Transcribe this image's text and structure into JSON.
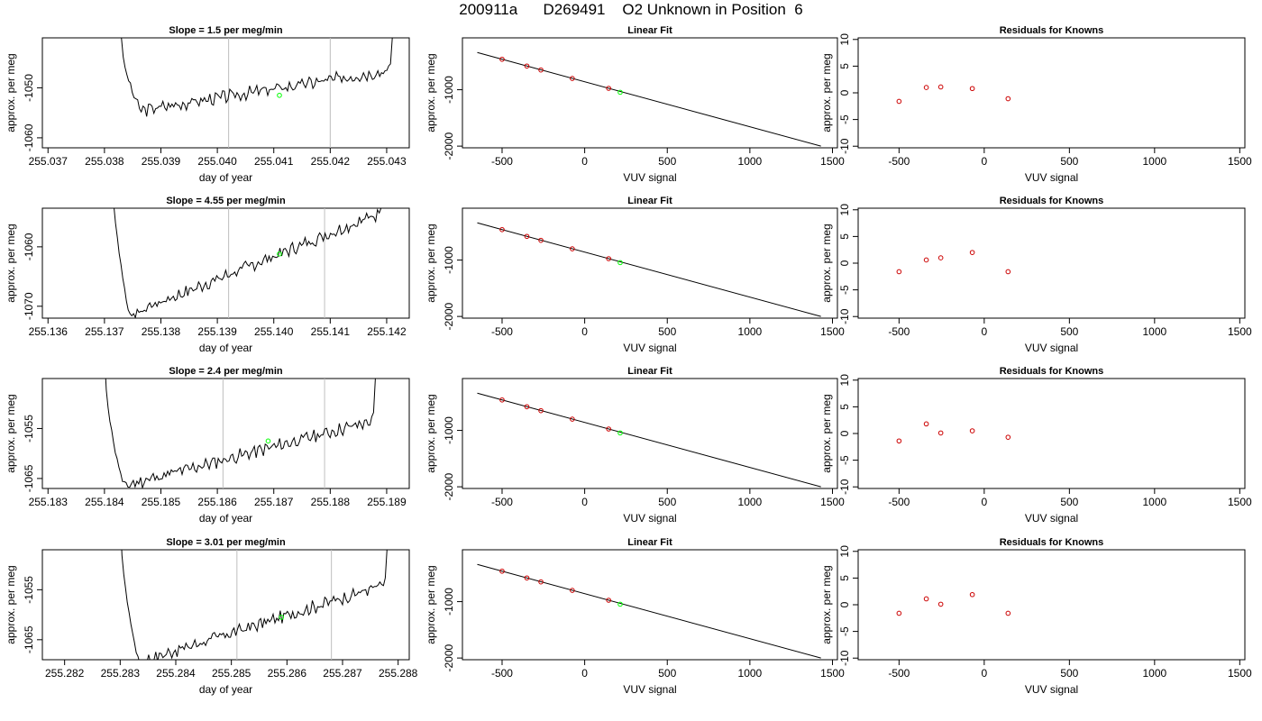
{
  "page": {
    "title": "200911a      D269491    O2 Unknown in Position  6"
  },
  "colors": {
    "trace": "#000000",
    "marker_current": "#00ff00",
    "marker_known": "#cc0000",
    "vline": "#bebebe",
    "axis": "#000000"
  },
  "chart_data": [
    {
      "type": "line",
      "row": 1,
      "panel": "timeseries",
      "title": "Slope =  1.5  per meg/min",
      "xlabel": "day of year",
      "ylabel": "approx. per meg",
      "xlim": [
        255.0369,
        255.0434
      ],
      "ylim": [
        -1062.0,
        -1040.0
      ],
      "xticks": [
        "255.037",
        "255.038",
        "255.039",
        "255.040",
        "255.041",
        "255.042",
        "255.043"
      ],
      "xtick_values": [
        255.037,
        255.038,
        255.039,
        255.04,
        255.041,
        255.042,
        255.043
      ],
      "yticks": [
        "-1060",
        "-1050"
      ],
      "ytick_values": [
        -1060,
        -1050
      ],
      "vlines": [
        255.0402,
        255.042
      ],
      "trace": {
        "x0": 255.0383,
        "x1": 255.0431,
        "y0": -1040,
        "y1": -1040,
        "base_start": -1054.5,
        "base_end": -1046.5,
        "seed": 3
      },
      "highlight": {
        "x": 255.0411,
        "y": -1051.5
      }
    },
    {
      "type": "line",
      "row": 1,
      "panel": "fit",
      "title": "Linear Fit",
      "xlabel": "VUV signal",
      "ylabel": "approx. per meg",
      "xlim": [
        -740,
        1530
      ],
      "ylim": [
        -2030,
        -80
      ],
      "xticks": [
        "-500",
        "0",
        "500",
        "1000",
        "1500"
      ],
      "xtick_values": [
        -500,
        0,
        500,
        1000,
        1500
      ],
      "yticks": [
        "-1000",
        "-2000"
      ],
      "ytick_values": [
        -1000,
        -2000
      ],
      "line": {
        "x": [
          -650,
          1430
        ],
        "y": [
          -340,
          -2000
        ]
      },
      "points": {
        "x": [
          -500,
          -350,
          -265,
          -75,
          145
        ],
        "y": [
          -460,
          -580,
          -650,
          -800,
          -975
        ]
      },
      "highlight": {
        "x": 215,
        "y": -1045
      }
    },
    {
      "type": "scatter",
      "row": 1,
      "panel": "residuals",
      "title": "Residuals for Knowns",
      "xlabel": "VUV signal",
      "ylabel": "approx. per meg",
      "xlim": [
        -740,
        1530
      ],
      "ylim": [
        -10.3,
        10.3
      ],
      "xticks": [
        "-500",
        "0",
        "500",
        "1000",
        "1500"
      ],
      "xtick_values": [
        -500,
        0,
        500,
        1000,
        1500
      ],
      "yticks": [
        "-10",
        "-5",
        "0",
        "5",
        "10"
      ],
      "ytick_values": [
        -10,
        -5,
        0,
        5,
        10
      ],
      "x": [
        -500,
        -340,
        -255,
        -70,
        140
      ],
      "y": [
        -1.6,
        1.0,
        1.1,
        0.8,
        -1.1
      ]
    },
    {
      "type": "line",
      "row": 2,
      "panel": "timeseries",
      "title": "Slope =  4.55  per meg/min",
      "xlabel": "day of year",
      "ylabel": "approx. per meg",
      "xlim": [
        255.1359,
        255.1424
      ],
      "ylim": [
        -1072.0,
        -1053.5
      ],
      "xticks": [
        "255.136",
        "255.137",
        "255.138",
        "255.139",
        "255.140",
        "255.141",
        "255.142"
      ],
      "xtick_values": [
        255.136,
        255.137,
        255.138,
        255.139,
        255.14,
        255.141,
        255.142
      ],
      "yticks": [
        "-1070",
        "-1060"
      ],
      "ytick_values": [
        -1070,
        -1060
      ],
      "vlines": [
        255.1392,
        255.1409
      ],
      "trace": {
        "x0": 255.1371,
        "x1": 255.1419,
        "y0": -1040,
        "y1": -1053.5,
        "base_start": -1071.5,
        "base_end": -1054.5,
        "seed": 7
      },
      "highlight": {
        "x": 255.1401,
        "y": -1061.2
      }
    },
    {
      "type": "line",
      "row": 2,
      "panel": "fit",
      "title": "Linear Fit",
      "xlabel": "VUV signal",
      "ylabel": "approx. per meg",
      "xlim": [
        -740,
        1530
      ],
      "ylim": [
        -2030,
        -80
      ],
      "xticks": [
        "-500",
        "0",
        "500",
        "1000",
        "1500"
      ],
      "xtick_values": [
        -500,
        0,
        500,
        1000,
        1500
      ],
      "yticks": [
        "-1000",
        "-2000"
      ],
      "ytick_values": [
        -1000,
        -2000
      ],
      "line": {
        "x": [
          -650,
          1430
        ],
        "y": [
          -340,
          -2000
        ]
      },
      "points": {
        "x": [
          -500,
          -350,
          -265,
          -75,
          145
        ],
        "y": [
          -460,
          -580,
          -650,
          -800,
          -975
        ]
      },
      "highlight": {
        "x": 215,
        "y": -1045
      }
    },
    {
      "type": "scatter",
      "row": 2,
      "panel": "residuals",
      "title": "Residuals for Knowns",
      "xlabel": "VUV signal",
      "ylabel": "approx. per meg",
      "xlim": [
        -740,
        1530
      ],
      "ylim": [
        -10.3,
        10.3
      ],
      "xticks": [
        "-500",
        "0",
        "500",
        "1000",
        "1500"
      ],
      "xtick_values": [
        -500,
        0,
        500,
        1000,
        1500
      ],
      "yticks": [
        "-10",
        "-5",
        "0",
        "5",
        "10"
      ],
      "ytick_values": [
        -10,
        -5,
        0,
        5,
        10
      ],
      "x": [
        -500,
        -340,
        -255,
        -70,
        140
      ],
      "y": [
        -1.6,
        0.6,
        1.0,
        2.0,
        -1.6
      ]
    },
    {
      "type": "line",
      "row": 3,
      "panel": "timeseries",
      "title": "Slope =  2.4  per meg/min",
      "xlabel": "day of year",
      "ylabel": "approx. per meg",
      "xlim": [
        255.1829,
        255.1894
      ],
      "ylim": [
        -1067.0,
        -1045.0
      ],
      "xticks": [
        "255.183",
        "255.184",
        "255.185",
        "255.186",
        "255.187",
        "255.188",
        "255.189"
      ],
      "xtick_values": [
        255.183,
        255.184,
        255.185,
        255.186,
        255.187,
        255.188,
        255.189
      ],
      "yticks": [
        "-1065",
        "-1055"
      ],
      "ytick_values": [
        -1065,
        -1055
      ],
      "vlines": [
        255.1861,
        255.1879
      ],
      "trace": {
        "x0": 255.184,
        "x1": 255.1888,
        "y0": -1040,
        "y1": -1045,
        "base_start": -1066.5,
        "base_end": -1053.5,
        "seed": 11
      },
      "highlight": {
        "x": 255.1869,
        "y": -1057.5
      }
    },
    {
      "type": "line",
      "row": 3,
      "panel": "fit",
      "title": "Linear Fit",
      "xlabel": "VUV signal",
      "ylabel": "approx. per meg",
      "xlim": [
        -740,
        1530
      ],
      "ylim": [
        -2030,
        -80
      ],
      "xticks": [
        "-500",
        "0",
        "500",
        "1000",
        "1500"
      ],
      "xtick_values": [
        -500,
        0,
        500,
        1000,
        1500
      ],
      "yticks": [
        "-1000",
        "-2000"
      ],
      "ytick_values": [
        -1000,
        -2000
      ],
      "line": {
        "x": [
          -650,
          1430
        ],
        "y": [
          -340,
          -2000
        ]
      },
      "points": {
        "x": [
          -500,
          -350,
          -265,
          -75,
          145
        ],
        "y": [
          -460,
          -580,
          -650,
          -800,
          -975
        ]
      },
      "highlight": {
        "x": 215,
        "y": -1045
      }
    },
    {
      "type": "scatter",
      "row": 3,
      "panel": "residuals",
      "title": "Residuals for Knowns",
      "xlabel": "VUV signal",
      "ylabel": "approx. per meg",
      "xlim": [
        -740,
        1530
      ],
      "ylim": [
        -10.3,
        10.3
      ],
      "xticks": [
        "-500",
        "0",
        "500",
        "1000",
        "1500"
      ],
      "xtick_values": [
        -500,
        0,
        500,
        1000,
        1500
      ],
      "yticks": [
        "-10",
        "-5",
        "0",
        "5",
        "10"
      ],
      "ytick_values": [
        -10,
        -5,
        0,
        5,
        10
      ],
      "x": [
        -500,
        -340,
        -255,
        -70,
        140
      ],
      "y": [
        -1.4,
        1.8,
        0.1,
        0.5,
        -0.7
      ]
    },
    {
      "type": "line",
      "row": 4,
      "panel": "timeseries",
      "title": "Slope =  3.01  per meg/min",
      "xlabel": "day of year",
      "ylabel": "approx. per meg",
      "xlim": [
        255.2816,
        255.2882
      ],
      "ylim": [
        -1069.0,
        -1047.0
      ],
      "xticks": [
        "255.282",
        "255.283",
        "255.284",
        "255.285",
        "255.286",
        "255.287",
        "255.288"
      ],
      "xtick_values": [
        255.282,
        255.283,
        255.284,
        255.285,
        255.286,
        255.287,
        255.288
      ],
      "yticks": [
        "-1065",
        "-1055"
      ],
      "ytick_values": [
        -1065,
        -1055
      ],
      "vlines": [
        255.2851,
        255.2868
      ],
      "trace": {
        "x0": 255.283,
        "x1": 255.2878,
        "y0": -1040,
        "y1": -1047,
        "base_start": -1069.5,
        "base_end": -1054.0,
        "seed": 17
      },
      "highlight": {
        "x": 255.2859,
        "y": -1060.5
      }
    },
    {
      "type": "line",
      "row": 4,
      "panel": "fit",
      "title": "Linear Fit",
      "xlabel": "VUV signal",
      "ylabel": "approx. per meg",
      "xlim": [
        -740,
        1530
      ],
      "ylim": [
        -2030,
        -80
      ],
      "xticks": [
        "-500",
        "0",
        "500",
        "1000",
        "1500"
      ],
      "xtick_values": [
        -500,
        0,
        500,
        1000,
        1500
      ],
      "yticks": [
        "-1000",
        "-2000"
      ],
      "ytick_values": [
        -1000,
        -2000
      ],
      "line": {
        "x": [
          -650,
          1430
        ],
        "y": [
          -340,
          -2000
        ]
      },
      "points": {
        "x": [
          -500,
          -350,
          -265,
          -75,
          145
        ],
        "y": [
          -460,
          -580,
          -650,
          -800,
          -975
        ]
      },
      "highlight": {
        "x": 215,
        "y": -1045
      }
    },
    {
      "type": "scatter",
      "row": 4,
      "panel": "residuals",
      "title": "Residuals for Knowns",
      "xlabel": "VUV signal",
      "ylabel": "approx. per meg",
      "xlim": [
        -740,
        1530
      ],
      "ylim": [
        -10.3,
        10.3
      ],
      "xticks": [
        "-500",
        "0",
        "500",
        "1000",
        "1500"
      ],
      "xtick_values": [
        -500,
        0,
        500,
        1000,
        1500
      ],
      "yticks": [
        "-10",
        "-5",
        "0",
        "5",
        "10"
      ],
      "ytick_values": [
        -10,
        -5,
        0,
        5,
        10
      ],
      "x": [
        -500,
        -340,
        -255,
        -70,
        140
      ],
      "y": [
        -1.6,
        1.1,
        0.1,
        1.9,
        -1.6
      ]
    }
  ]
}
